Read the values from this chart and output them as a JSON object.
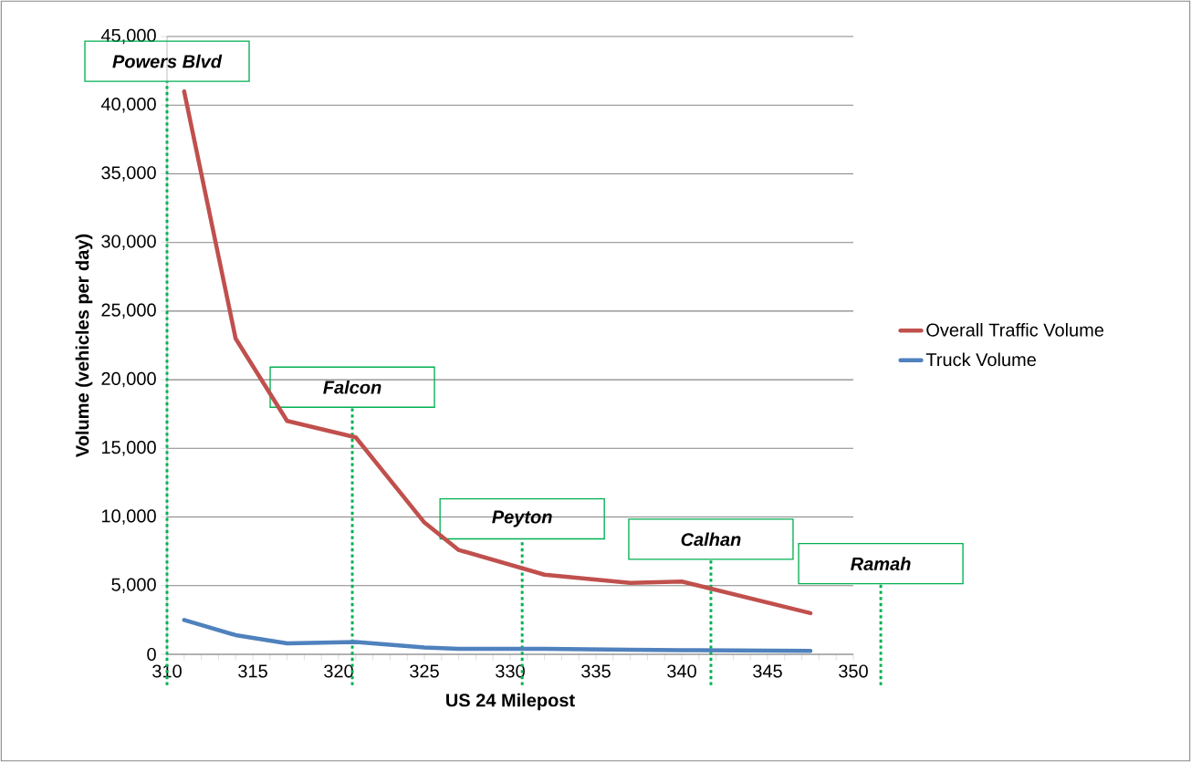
{
  "chart_data": {
    "type": "line",
    "xlabel": "US 24 Milepost",
    "ylabel": "Volume (vehicles per day)",
    "xlim": [
      310,
      350
    ],
    "xticks": [
      310,
      315,
      320,
      325,
      330,
      335,
      340,
      345,
      350
    ],
    "ylim": [
      0,
      45000
    ],
    "yticks": [
      {
        "value": 0,
        "label": "0"
      },
      {
        "value": 5000,
        "label": "5,000"
      },
      {
        "value": 10000,
        "label": "10,000"
      },
      {
        "value": 15000,
        "label": "15,000"
      },
      {
        "value": 20000,
        "label": "20,000"
      },
      {
        "value": 25000,
        "label": "25,000"
      },
      {
        "value": 30000,
        "label": "30,000"
      },
      {
        "value": 35000,
        "label": "35,000"
      },
      {
        "value": 40000,
        "label": "40,000"
      },
      {
        "value": 45000,
        "label": "45,000"
      }
    ],
    "grid": "y",
    "legend": "right",
    "marker": "none",
    "line_style": "solid",
    "series": [
      {
        "name": "Overall Traffic Volume",
        "color": "#c0504d",
        "x": [
          311,
          314,
          317,
          321,
          325,
          327,
          332,
          337,
          340,
          347.5
        ],
        "values": [
          41000,
          23000,
          17000,
          15800,
          9600,
          7600,
          5800,
          5200,
          5300,
          3000
        ]
      },
      {
        "name": "Truck Volume",
        "color": "#4f81bd",
        "x": [
          311,
          314,
          317,
          321,
          325,
          327,
          332,
          337,
          340,
          347.5
        ],
        "values": [
          2500,
          1400,
          800,
          900,
          500,
          400,
          400,
          330,
          300,
          250
        ]
      }
    ],
    "ref_lines": [
      {
        "axis": "x",
        "value": 310,
        "label": "Powers Blvd",
        "color": "#00b050",
        "line_style": "dotted"
      },
      {
        "axis": "x",
        "value": 320.8,
        "label": "Falcon",
        "color": "#00b050",
        "line_style": "dotted"
      },
      {
        "axis": "x",
        "value": 330.7,
        "label": "Peyton",
        "color": "#00b050",
        "line_style": "dotted"
      },
      {
        "axis": "x",
        "value": 341.7,
        "label": "Calhan",
        "color": "#00b050",
        "line_style": "dotted"
      },
      {
        "axis": "x",
        "value": 351.6,
        "label": "Ramah",
        "color": "#00b050",
        "line_style": "dotted"
      }
    ]
  }
}
